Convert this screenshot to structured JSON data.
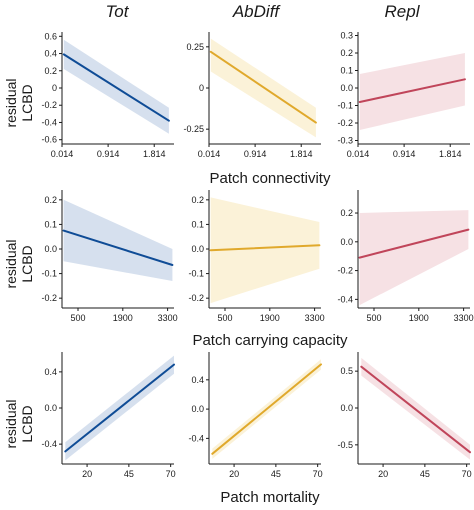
{
  "columns": [
    "Tot",
    "AbDiff",
    "Repl"
  ],
  "row_titles": [
    "Patch connectivity",
    "Patch carrying capacity",
    "Patch mortality"
  ],
  "y_axis_label": [
    "residual",
    "LCBD"
  ],
  "series_colors": {
    "Tot": "#0f4c96",
    "AbDiff": "#e0a92c",
    "Repl": "#c0455a"
  },
  "band_colors": {
    "Tot": "#d6e0ee",
    "AbDiff": "#fbf2d8",
    "Repl": "#f6e1e4"
  },
  "chart_data": [
    {
      "type": "line",
      "row": "Patch connectivity",
      "column": "Tot",
      "xlim": [
        0.014,
        2.2
      ],
      "ylim": [
        -0.65,
        0.65
      ],
      "xticks": [
        0.014,
        0.914,
        1.814
      ],
      "xtick_labels": [
        "0.014",
        "0.914",
        "1.814"
      ],
      "yticks": [
        0.6,
        0.4,
        0.2,
        0,
        -0.2,
        -0.4,
        -0.6
      ],
      "ytick_labels": [
        "0.6",
        "0.4",
        "0.2",
        "0",
        "-0.2",
        "-0.4",
        "-0.6"
      ],
      "x": [
        0.05,
        2.1
      ],
      "y": [
        0.39,
        -0.38
      ],
      "ci_lower": [
        0.22,
        -0.53
      ],
      "ci_upper": [
        0.56,
        -0.23
      ]
    },
    {
      "type": "line",
      "row": "Patch connectivity",
      "column": "AbDiff",
      "xlim": [
        0.014,
        2.2
      ],
      "ylim": [
        -0.34,
        0.34
      ],
      "xticks": [
        0.014,
        0.914,
        1.814
      ],
      "xtick_labels": [
        "0.014",
        "0.914",
        "1.814"
      ],
      "yticks": [
        0.25,
        0,
        -0.25
      ],
      "ytick_labels": [
        "0.25",
        "0",
        "-0.25"
      ],
      "x": [
        0.05,
        2.1
      ],
      "y": [
        0.22,
        -0.21
      ],
      "ci_lower": [
        0.1,
        -0.3
      ],
      "ci_upper": [
        0.3,
        -0.12
      ]
    },
    {
      "type": "line",
      "row": "Patch connectivity",
      "column": "Repl",
      "xlim": [
        0.014,
        2.2
      ],
      "ylim": [
        -0.32,
        0.32
      ],
      "xticks": [
        0.014,
        0.914,
        1.814
      ],
      "xtick_labels": [
        "0.014",
        "0.914",
        "1.814"
      ],
      "yticks": [
        0.3,
        0.2,
        0.1,
        0,
        -0.1,
        -0.2,
        -0.3
      ],
      "ytick_labels": [
        "0.3",
        "0.2",
        "0.1",
        "0.0",
        "-0.1",
        "-0.2",
        "-0.3"
      ],
      "x": [
        0.05,
        2.1
      ],
      "y": [
        -0.08,
        0.05
      ],
      "ci_lower": [
        -0.24,
        -0.1
      ],
      "ci_upper": [
        0.08,
        0.2
      ]
    },
    {
      "type": "line",
      "row": "Patch carrying capacity",
      "column": "Tot",
      "xlim": [
        0,
        3500
      ],
      "ylim": [
        -0.24,
        0.24
      ],
      "xticks": [
        500,
        1900,
        3300
      ],
      "xtick_labels": [
        "500",
        "1900",
        "3300"
      ],
      "yticks": [
        0.2,
        0.1,
        0,
        -0.1,
        -0.2
      ],
      "ytick_labels": [
        "0.2",
        "0.1",
        "0.0",
        "-0.1",
        "-0.2"
      ],
      "x": [
        50,
        3450
      ],
      "y": [
        0.075,
        -0.065
      ],
      "ci_lower": [
        -0.05,
        -0.13
      ],
      "ci_upper": [
        0.2,
        0.0
      ]
    },
    {
      "type": "line",
      "row": "Patch carrying capacity",
      "column": "AbDiff",
      "xlim": [
        0,
        3500
      ],
      "ylim": [
        -0.24,
        0.24
      ],
      "xticks": [
        500,
        1900,
        3300
      ],
      "xtick_labels": [
        "500",
        "1900",
        "3300"
      ],
      "yticks": [
        0.2,
        0.1,
        0,
        -0.1,
        -0.2
      ],
      "ytick_labels": [
        "0.2",
        "0.1",
        "0.0",
        "-0.1",
        "-0.2"
      ],
      "x": [
        50,
        3450
      ],
      "y": [
        -0.005,
        0.015
      ],
      "ci_lower": [
        -0.22,
        -0.08
      ],
      "ci_upper": [
        0.21,
        0.11
      ]
    },
    {
      "type": "line",
      "row": "Patch carrying capacity",
      "column": "Repl",
      "xlim": [
        0,
        3500
      ],
      "ylim": [
        -0.46,
        0.36
      ],
      "xticks": [
        500,
        1900,
        3300
      ],
      "xtick_labels": [
        "500",
        "1900",
        "3300"
      ],
      "yticks": [
        0.2,
        0,
        -0.2,
        -0.4
      ],
      "ytick_labels": [
        "0.2",
        "0.0",
        "-0.2",
        "-0.4"
      ],
      "x": [
        50,
        3450
      ],
      "y": [
        -0.11,
        0.085
      ],
      "ci_lower": [
        -0.44,
        -0.05
      ],
      "ci_upper": [
        0.2,
        0.22
      ]
    },
    {
      "type": "line",
      "row": "Patch mortality",
      "column": "Tot",
      "xlim": [
        5,
        72
      ],
      "ylim": [
        -0.62,
        0.62
      ],
      "xticks": [
        20,
        45,
        70
      ],
      "xtick_labels": [
        "20",
        "45",
        "70"
      ],
      "yticks": [
        0.4,
        0,
        -0.4
      ],
      "ytick_labels": [
        "0.4",
        "0.0",
        "-0.4"
      ],
      "x": [
        7,
        72
      ],
      "y": [
        -0.48,
        0.48
      ],
      "ci_lower": [
        -0.58,
        0.38
      ],
      "ci_upper": [
        -0.38,
        0.58
      ]
    },
    {
      "type": "line",
      "row": "Patch mortality",
      "column": "AbDiff",
      "xlim": [
        5,
        72
      ],
      "ylim": [
        -0.75,
        0.78
      ],
      "xticks": [
        20,
        45,
        70
      ],
      "xtick_labels": [
        "20",
        "45",
        "70"
      ],
      "yticks": [
        0.4,
        0,
        -0.4
      ],
      "ytick_labels": [
        "0.4",
        "0.0",
        "-0.4"
      ],
      "x": [
        7,
        72
      ],
      "y": [
        -0.61,
        0.61
      ],
      "ci_lower": [
        -0.68,
        0.54
      ],
      "ci_upper": [
        -0.54,
        0.68
      ]
    },
    {
      "type": "line",
      "row": "Patch mortality",
      "column": "Repl",
      "xlim": [
        5,
        72
      ],
      "ylim": [
        -0.76,
        0.76
      ],
      "xticks": [
        20,
        45,
        70
      ],
      "xtick_labels": [
        "20",
        "45",
        "70"
      ],
      "yticks": [
        0.5,
        0,
        -0.5
      ],
      "ytick_labels": [
        "0.5",
        "0.0",
        "-0.5"
      ],
      "x": [
        7,
        72
      ],
      "y": [
        0.56,
        -0.6
      ],
      "ci_lower": [
        0.44,
        -0.7
      ],
      "ci_upper": [
        0.68,
        -0.5
      ]
    }
  ]
}
